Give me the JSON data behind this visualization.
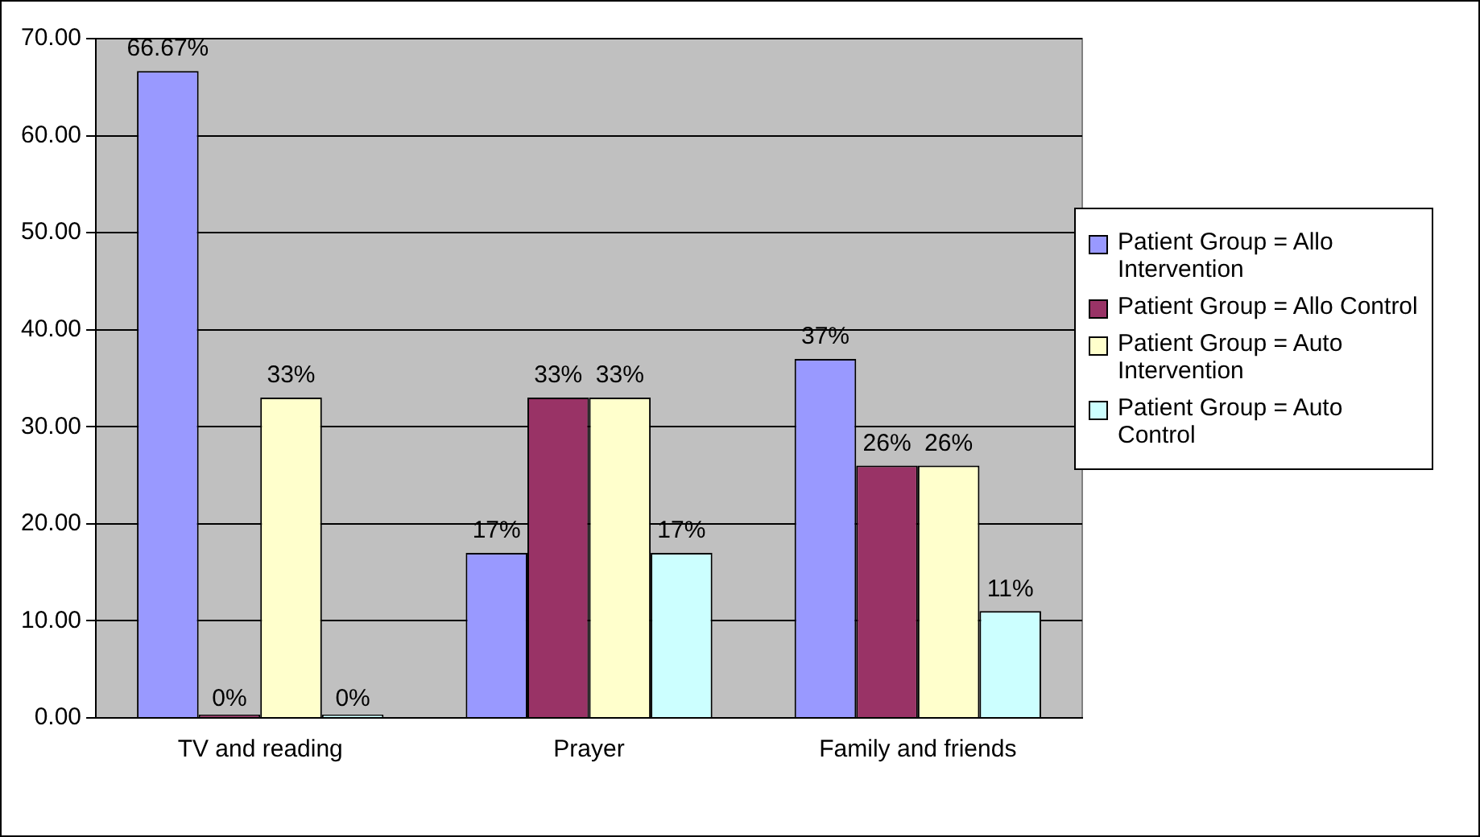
{
  "chart_data": {
    "type": "bar",
    "categories": [
      "TV and reading",
      "Prayer",
      "Family and friends"
    ],
    "series": [
      {
        "name": "Patient Group = Allo Intervention",
        "color": "#9999ff",
        "values": [
          66.67,
          17,
          37
        ],
        "value_labels": [
          "66.67%",
          "17%",
          "37%"
        ]
      },
      {
        "name": "Patient Group = Allo Control",
        "color": "#993366",
        "values": [
          0,
          33,
          26
        ],
        "value_labels": [
          "0%",
          "33%",
          "26%"
        ]
      },
      {
        "name": "Patient Group = Auto Intervention",
        "color": "#ffffcc",
        "values": [
          33,
          33,
          26
        ],
        "value_labels": [
          "33%",
          "33%",
          "26%"
        ]
      },
      {
        "name": "Patient Group = Auto Control",
        "color": "#ccffff",
        "values": [
          0,
          17,
          11
        ],
        "value_labels": [
          "0%",
          "17%",
          "11%"
        ]
      }
    ],
    "ylim": [
      0,
      70
    ],
    "yticks": [
      {
        "value": 0,
        "label": "0.00"
      },
      {
        "value": 10,
        "label": "10.00"
      },
      {
        "value": 20,
        "label": "20.00"
      },
      {
        "value": 30,
        "label": "30.00"
      },
      {
        "value": 40,
        "label": "40.00"
      },
      {
        "value": 50,
        "label": "50.00"
      },
      {
        "value": 60,
        "label": "60.00"
      },
      {
        "value": 70,
        "label": "70.00"
      }
    ],
    "grid": "y",
    "legend": "right"
  }
}
